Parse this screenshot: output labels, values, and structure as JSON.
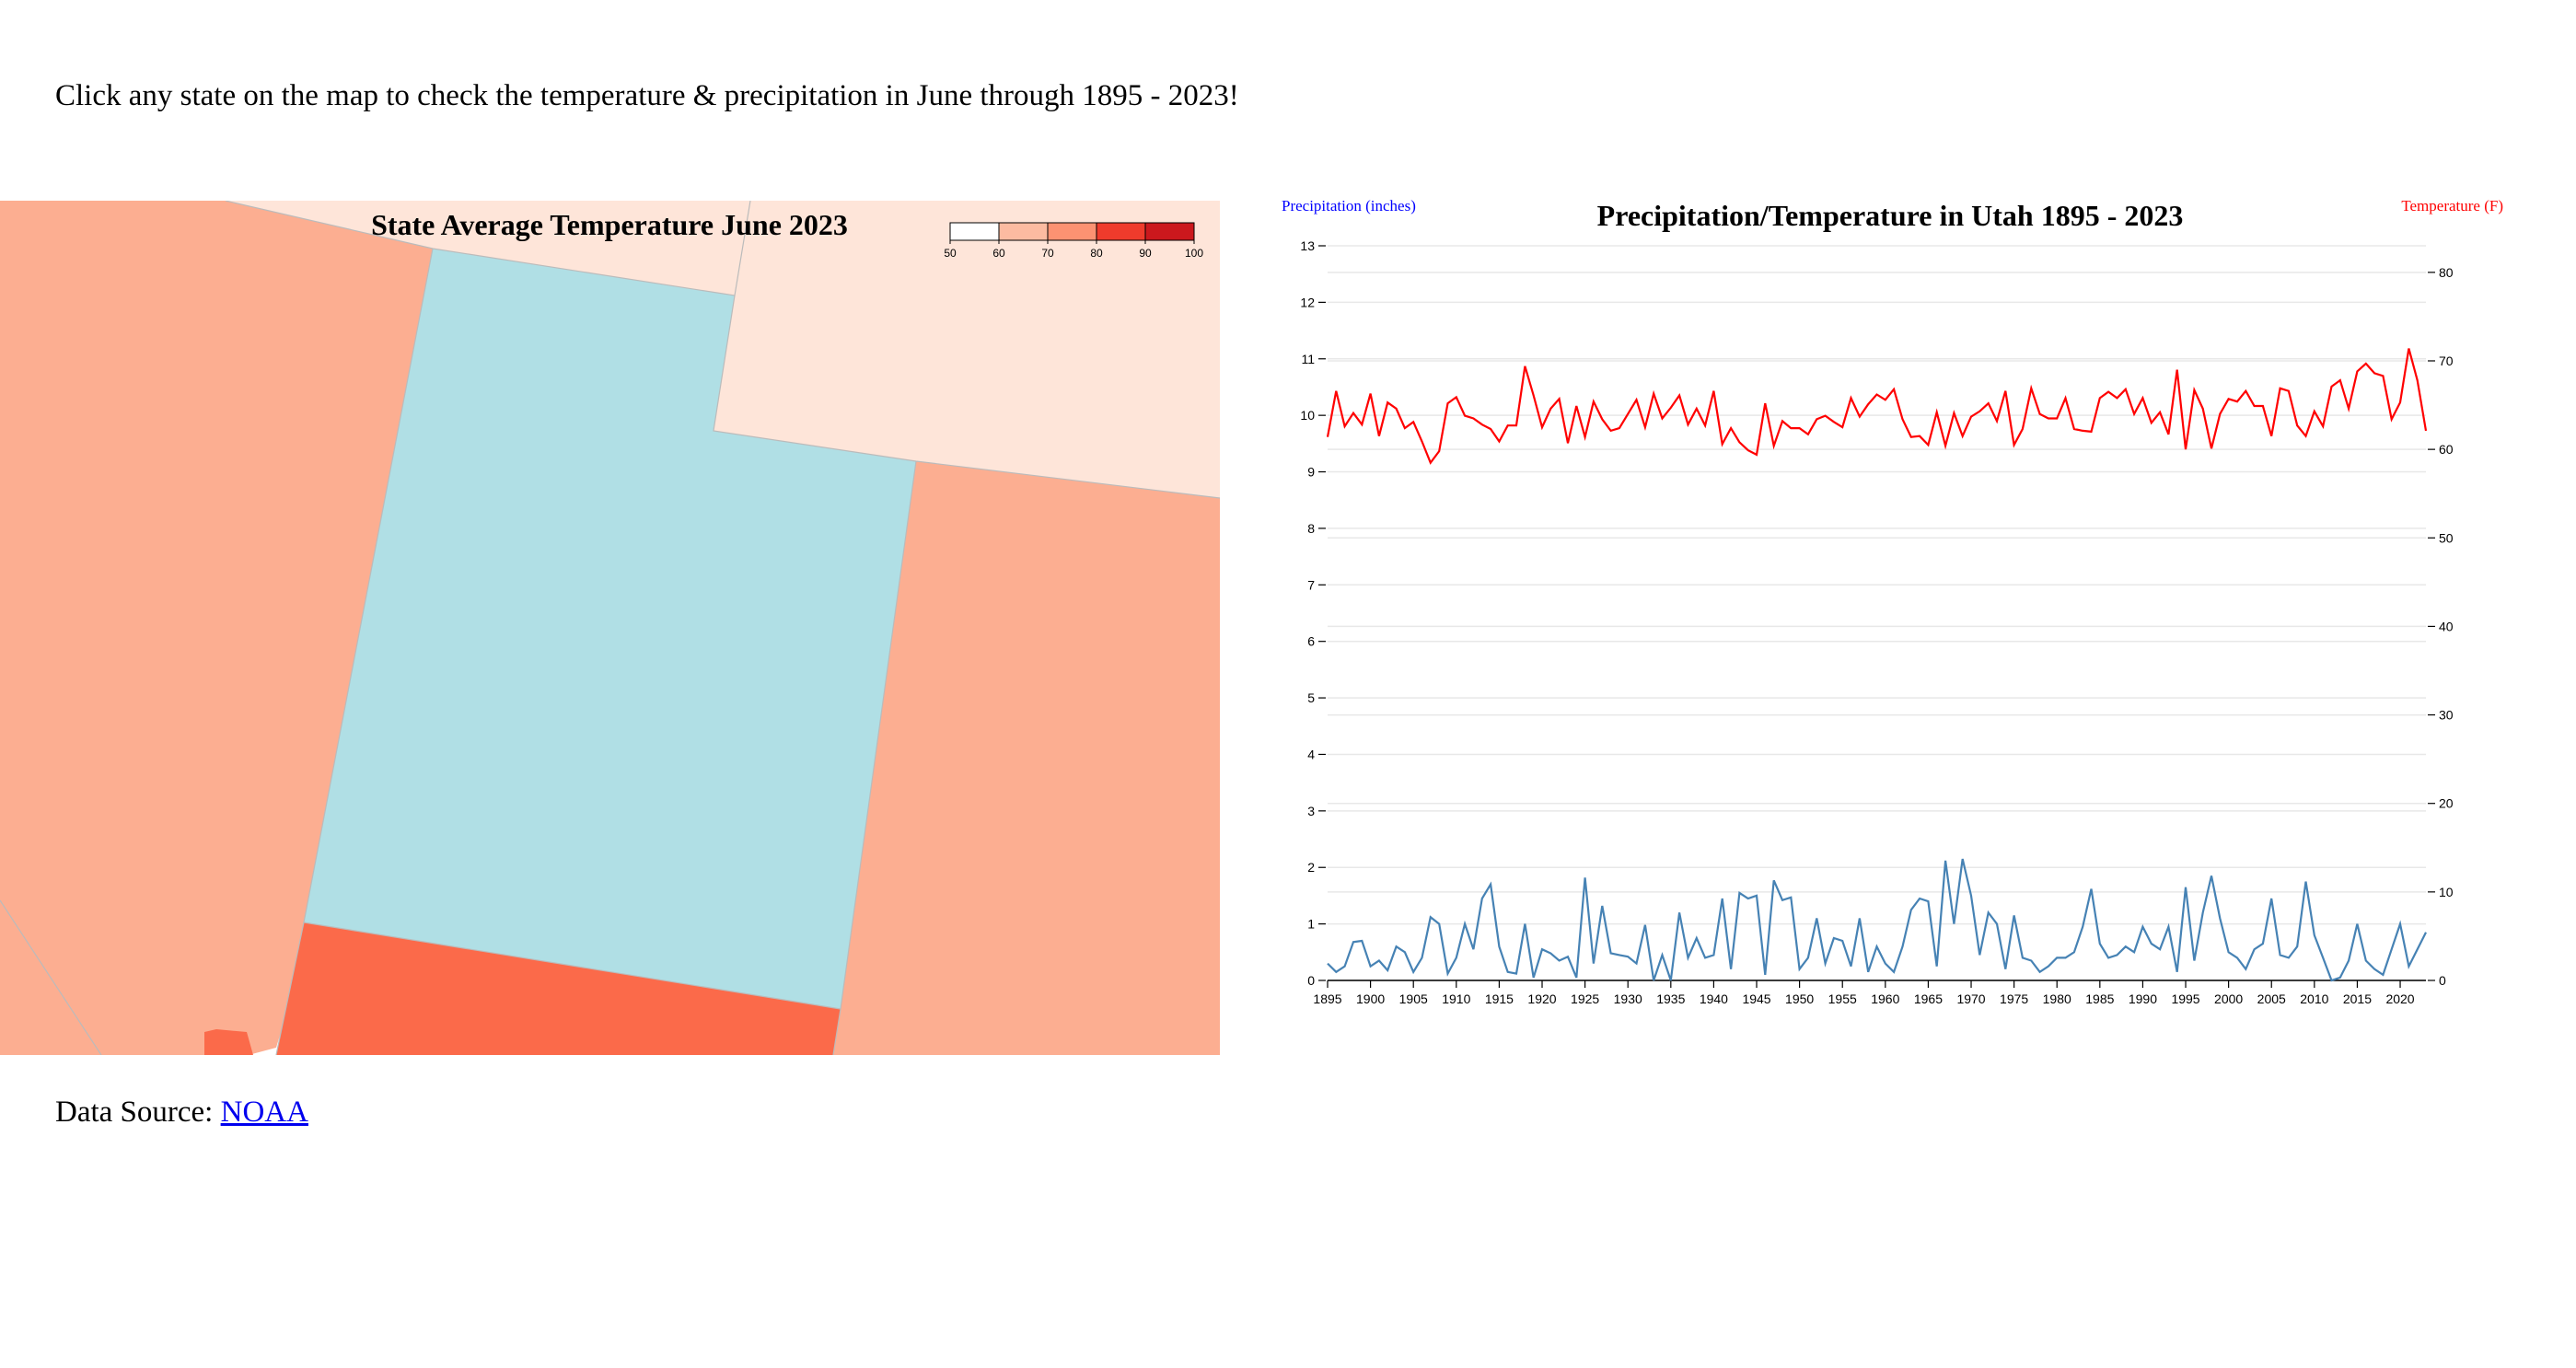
{
  "page": {
    "intro_text": "Click any state on the map to check the temperature & precipitation in June through 1895 - 2023!",
    "source_label": "Data Source: ",
    "source_link": "NOAA"
  },
  "map": {
    "title": "State Average Temperature June 2023",
    "legend_ticks": [
      "50",
      "60",
      "70",
      "80",
      "90",
      "100"
    ],
    "legend_colors": [
      "#ffffff",
      "#fcbba1",
      "#fc9272",
      "#ef3b2c",
      "#cb181d",
      "#a50f15"
    ],
    "fills": {
      "selected": "#b0dfe5",
      "light": "#fee5d9",
      "medium": "#fcae91",
      "hot": "#fb6a4a",
      "border": "#bbbbbb"
    }
  },
  "chart_data": {
    "type": "line",
    "title": "Precipitation/Temperature in Utah 1895 - 2023",
    "ylabel_left": "Precipitation (inches)",
    "ylabel_right": "Temperature (F)",
    "left_color": "#0000ff",
    "right_color": "#ff0000",
    "ylim_left": [
      0,
      13
    ],
    "ylim_right": [
      0,
      83
    ],
    "xlim": [
      1895,
      2023
    ],
    "x_ticks": [
      "1895",
      "1900",
      "1905",
      "1910",
      "1915",
      "1920",
      "1925",
      "1930",
      "1935",
      "1940",
      "1945",
      "1950",
      "1955",
      "1960",
      "1965",
      "1970",
      "1975",
      "1980",
      "1985",
      "1990",
      "1995",
      "2000",
      "2005",
      "2010",
      "2015",
      "2020"
    ],
    "y_ticks_left": [
      "0",
      "1",
      "2",
      "3",
      "4",
      "5",
      "6",
      "7",
      "8",
      "9",
      "10",
      "11",
      "12",
      "13"
    ],
    "y_ticks_right": [
      "0",
      "10",
      "20",
      "30",
      "40",
      "50",
      "60",
      "70",
      "80"
    ],
    "grid": true,
    "series": [
      {
        "name": "Temperature (F)",
        "axis": "right",
        "color": "#ff0000",
        "x_start": 1895,
        "values": [
          61.4,
          66.6,
          62.6,
          64.1,
          62.8,
          66.3,
          61.5,
          65.3,
          64.6,
          62.4,
          63.1,
          60.9,
          58.5,
          59.8,
          65.2,
          65.9,
          63.8,
          63.5,
          62.8,
          62.3,
          60.9,
          62.7,
          62.7,
          69.4,
          66.1,
          62.5,
          64.6,
          65.7,
          60.7,
          64.9,
          61.4,
          65.4,
          63.4,
          62.1,
          62.4,
          64.0,
          65.6,
          62.5,
          66.3,
          63.5,
          64.7,
          66.1,
          62.8,
          64.6,
          62.7,
          66.6,
          60.6,
          62.4,
          60.8,
          59.9,
          59.4,
          65.2,
          60.4,
          63.2,
          62.4,
          62.4,
          61.7,
          63.4,
          63.8,
          63.1,
          62.5,
          65.8,
          63.7,
          65.1,
          66.2,
          65.6,
          66.8,
          63.4,
          61.4,
          61.5,
          60.5,
          64.2,
          60.4,
          64.1,
          61.5,
          63.7,
          64.3,
          65.2,
          63.2,
          66.6,
          60.5,
          62.3,
          66.9,
          64.0,
          63.5,
          63.5,
          65.8,
          62.3,
          62.1,
          62.0,
          65.8,
          66.5,
          65.8,
          66.8,
          64.0,
          65.8,
          63.0,
          64.2,
          61.7,
          69.0,
          60.0,
          66.7,
          64.6,
          60.1,
          64.0,
          65.7,
          65.4,
          66.6,
          64.9,
          64.9,
          61.5,
          66.9,
          66.6,
          62.7,
          61.5,
          64.3,
          62.6,
          67.1,
          67.8,
          64.6,
          68.8,
          69.7,
          68.6,
          68.3,
          63.4,
          65.3,
          71.4,
          67.8,
          62.1
        ]
      },
      {
        "name": "Precipitation (inches)",
        "axis": "left",
        "color": "#4682b4",
        "x_start": 1895,
        "values": [
          0.3,
          0.15,
          0.25,
          0.68,
          0.7,
          0.25,
          0.35,
          0.18,
          0.6,
          0.5,
          0.15,
          0.4,
          1.12,
          1.0,
          0.12,
          0.4,
          1.0,
          0.55,
          1.45,
          1.7,
          0.6,
          0.15,
          0.12,
          1.0,
          0.05,
          0.55,
          0.48,
          0.35,
          0.42,
          0.05,
          1.82,
          0.3,
          1.32,
          0.48,
          0.45,
          0.42,
          0.3,
          0.98,
          0.0,
          0.45,
          0.0,
          1.2,
          0.4,
          0.75,
          0.4,
          0.45,
          1.45,
          0.2,
          1.55,
          1.45,
          1.5,
          0.1,
          1.77,
          1.42,
          1.47,
          0.2,
          0.4,
          1.1,
          0.3,
          0.75,
          0.7,
          0.25,
          1.1,
          0.15,
          0.6,
          0.3,
          0.15,
          0.6,
          1.25,
          1.45,
          1.4,
          0.25,
          2.12,
          1.0,
          2.15,
          1.5,
          0.45,
          1.2,
          1.0,
          0.2,
          1.15,
          0.4,
          0.35,
          0.15,
          0.25,
          0.4,
          0.4,
          0.5,
          0.95,
          1.62,
          0.65,
          0.4,
          0.45,
          0.6,
          0.5,
          0.95,
          0.65,
          0.55,
          0.95,
          0.15,
          1.65,
          0.35,
          1.2,
          1.85,
          1.1,
          0.5,
          0.4,
          0.2,
          0.55,
          0.65,
          1.45,
          0.45,
          0.4,
          0.6,
          1.75,
          0.8,
          0.4,
          0.0,
          0.05,
          0.35,
          1.0,
          0.35,
          0.2,
          0.1,
          0.55,
          1.0,
          0.25,
          0.55,
          0.85
        ]
      }
    ]
  }
}
